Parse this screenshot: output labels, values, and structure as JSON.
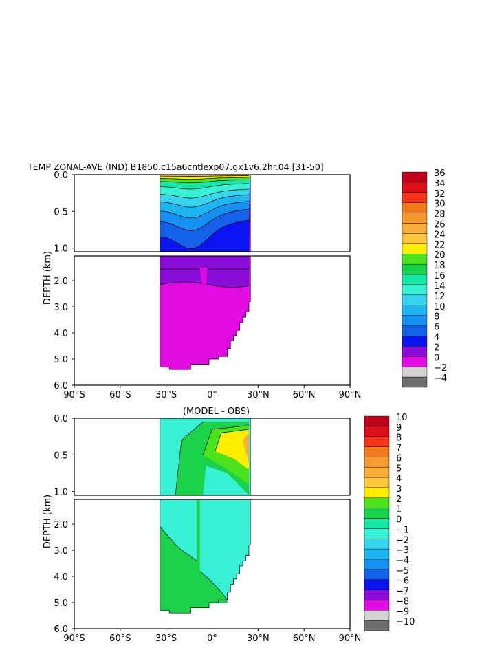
{
  "page": {
    "title": "TEMP ZONAL-AVE (IND) B1850.c15a6cntlexp07.gx1v6.2hr.04 [31-50]"
  },
  "chart_data": [
    {
      "type": "heatmap",
      "subtitle": "",
      "ylabel": "DEPTH (km)",
      "xticks": [
        "90°S",
        "60°S",
        "30°S",
        "0°",
        "30°N",
        "60°N",
        "90°N"
      ],
      "xlim": [
        -90,
        90
      ],
      "ylim": [
        6.0,
        0.0
      ],
      "yticks_upper": [
        "0.0",
        "0.5",
        "1.0"
      ],
      "yticks_lower": [
        "2.0",
        "3.0",
        "4.0",
        "5.0",
        "6.0"
      ],
      "colorbar_labels": [
        "36",
        "34",
        "32",
        "30",
        "28",
        "26",
        "24",
        "22",
        "20",
        "18",
        "16",
        "14",
        "12",
        "10",
        "8",
        "6",
        "4",
        "2",
        "0",
        "−2",
        "−4"
      ],
      "colorbar_colors": [
        "#c0001a",
        "#dd0f1a",
        "#f4351c",
        "#f07a1a",
        "#f59a2e",
        "#f8ad3c",
        "#fcc63e",
        "#ffee00",
        "#4ce31c",
        "#1ad24a",
        "#14e8a4",
        "#38f0d4",
        "#38d6ee",
        "#1eb6f0",
        "#1690f0",
        "#1460e8",
        "#0a14f0",
        "#8a0ed8",
        "#e20ae0",
        "#d2d2d2",
        "#6e6e6e"
      ]
    },
    {
      "type": "heatmap",
      "subtitle": "(MODEL - OBS)",
      "ylabel": "DEPTH (km)",
      "xticks": [
        "90°S",
        "60°S",
        "30°S",
        "0°",
        "30°N",
        "60°N",
        "90°N"
      ],
      "xlim": [
        -90,
        90
      ],
      "ylim": [
        6.0,
        0.0
      ],
      "yticks_upper": [
        "0.0",
        "0.5",
        "1.0"
      ],
      "yticks_lower": [
        "2.0",
        "3.0",
        "4.0",
        "5.0",
        "6.0"
      ],
      "colorbar_labels": [
        "10",
        "9",
        "8",
        "7",
        "6",
        "5",
        "4",
        "3",
        "2",
        "1",
        "0",
        "−1",
        "−2",
        "−3",
        "−4",
        "−5",
        "−6",
        "−7",
        "−8",
        "−9",
        "−10"
      ],
      "colorbar_colors": [
        "#c0001a",
        "#dd0f1a",
        "#f4351c",
        "#f07a1a",
        "#f59a2e",
        "#f8ad3c",
        "#fcc63e",
        "#ffee00",
        "#4ce31c",
        "#1ad24a",
        "#14e8a4",
        "#38f0d4",
        "#38d6ee",
        "#1eb6f0",
        "#1690f0",
        "#1460e8",
        "#0a14f0",
        "#8a0ed8",
        "#e20ae0",
        "#d2d2d2",
        "#6e6e6e"
      ]
    }
  ]
}
